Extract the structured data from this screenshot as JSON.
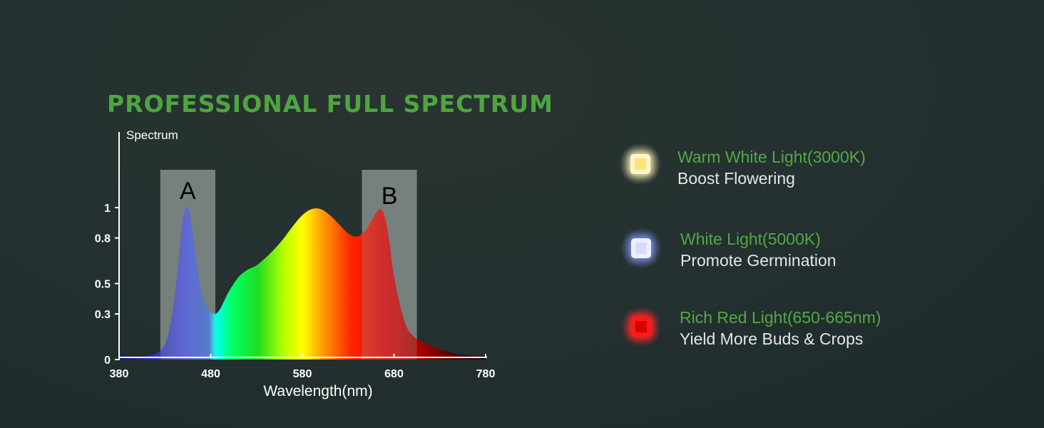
{
  "page_title": "PROFESSIONAL FULL SPECTRUM",
  "chart_data": {
    "type": "area",
    "ylabel": "Spectrum",
    "xlabel": "Wavelength(nm)",
    "xlim": [
      380,
      780
    ],
    "ylim": [
      0,
      1
    ],
    "x_ticks": [
      380,
      480,
      580,
      680,
      780
    ],
    "y_ticks": [
      {
        "value": 0,
        "label": "0"
      },
      {
        "value": 0.3,
        "label": "0.3"
      },
      {
        "value": 0.5,
        "label": "0.5"
      },
      {
        "value": 0.8,
        "label": "0.8"
      },
      {
        "value": 1,
        "label": "1"
      }
    ],
    "grid": false,
    "x": [
      380,
      400,
      410,
      420,
      425,
      430,
      435,
      440,
      445,
      450,
      455,
      460,
      465,
      470,
      475,
      480,
      485,
      490,
      495,
      500,
      510,
      520,
      530,
      540,
      550,
      560,
      570,
      580,
      590,
      600,
      610,
      620,
      630,
      640,
      650,
      660,
      665,
      670,
      675,
      680,
      690,
      700,
      720,
      740,
      760,
      780
    ],
    "values": [
      0.02,
      0.02,
      0.025,
      0.04,
      0.06,
      0.1,
      0.2,
      0.38,
      0.66,
      0.94,
      1.0,
      0.86,
      0.62,
      0.44,
      0.35,
      0.31,
      0.3,
      0.33,
      0.39,
      0.45,
      0.54,
      0.59,
      0.62,
      0.67,
      0.73,
      0.8,
      0.88,
      0.95,
      0.99,
      0.99,
      0.95,
      0.89,
      0.83,
      0.81,
      0.86,
      0.96,
      0.99,
      0.94,
      0.77,
      0.55,
      0.28,
      0.16,
      0.09,
      0.05,
      0.025,
      0.02
    ],
    "highlight_bands": [
      {
        "label": "A",
        "from": 425,
        "to": 485
      },
      {
        "label": "B",
        "from": 645,
        "to": 705
      }
    ]
  },
  "legend": [
    {
      "title": "Warm White Light(3000K)",
      "description": "Boost Flowering",
      "glow_color": "#f4e8b0",
      "chip_color": "#fff6c8",
      "core_color": "#ffe27a"
    },
    {
      "title": "White Light(5000K)",
      "description": "Promote Germination",
      "glow_color": "#7f8fe8",
      "chip_color": "#eef0ff",
      "core_color": "#d6dcff"
    },
    {
      "title": "Rich Red Light(650-665nm)",
      "description": "Yield More Buds & Crops",
      "glow_color": "#ff2a2a",
      "chip_color": "#ff1a1a",
      "core_color": "#d80000"
    }
  ]
}
